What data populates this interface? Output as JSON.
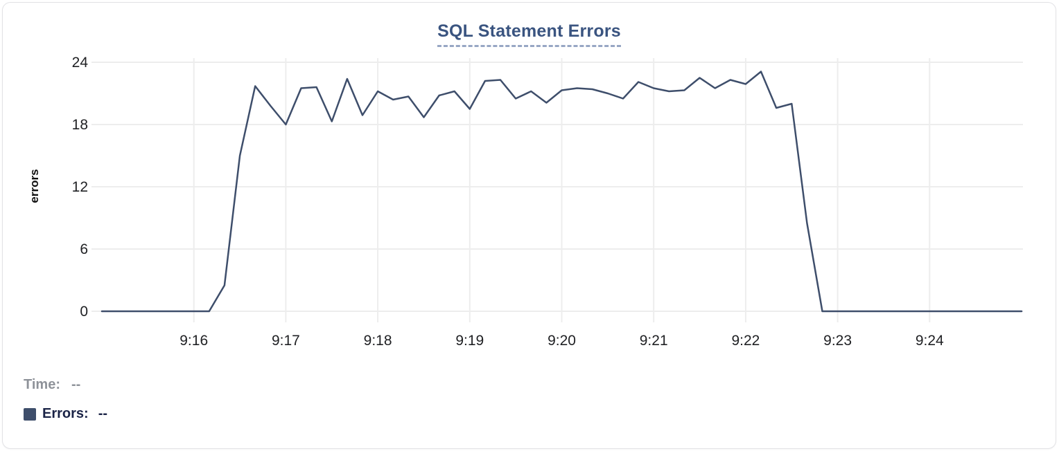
{
  "card": {
    "title": "SQL Statement Errors"
  },
  "footer": {
    "time_label": "Time:",
    "time_value": "--",
    "errors_label": "Errors:",
    "errors_value": "--"
  },
  "colors": {
    "series_line": "#3e4e6b",
    "legend_swatch": "#3e4e6b",
    "title_text": "#3a5480",
    "title_underline": "#97a6c4",
    "gridline": "#ededed",
    "tick_text": "#202124",
    "time_text": "#8e9299",
    "errors_text": "#1b2447",
    "card_border": "#e2e2e5"
  },
  "chart_data": {
    "type": "line",
    "title": "SQL Statement Errors",
    "xlabel": "",
    "ylabel": "errors",
    "ylim": [
      0,
      24
    ],
    "yticks": [
      0,
      6,
      12,
      18,
      24
    ],
    "xticks": [
      "9:16",
      "9:17",
      "9:18",
      "9:19",
      "9:20",
      "9:21",
      "9:22",
      "9:23",
      "9:24"
    ],
    "x_range": [
      "9:15:00",
      "9:25:00"
    ],
    "grid": true,
    "legend_position": "bottom-left",
    "series": [
      {
        "name": "Errors",
        "color": "#3e4e6b",
        "start": "9:15:00",
        "interval_s": 10,
        "values": [
          0,
          0,
          0,
          0,
          0,
          0,
          0,
          0,
          2.5,
          15,
          21.7,
          19.8,
          18,
          21.5,
          21.6,
          18.3,
          22.4,
          18.9,
          21.2,
          20.4,
          20.7,
          18.7,
          20.8,
          21.2,
          19.5,
          22.2,
          22.3,
          20.5,
          21.2,
          20.1,
          21.3,
          21.5,
          21.4,
          21,
          20.5,
          22.1,
          21.5,
          21.2,
          21.3,
          22.5,
          21.5,
          22.3,
          21.9,
          23.1,
          19.6,
          20,
          8.5,
          0,
          0,
          0,
          0,
          0,
          0,
          0,
          0,
          0,
          0,
          0,
          0,
          0,
          0
        ]
      }
    ]
  }
}
